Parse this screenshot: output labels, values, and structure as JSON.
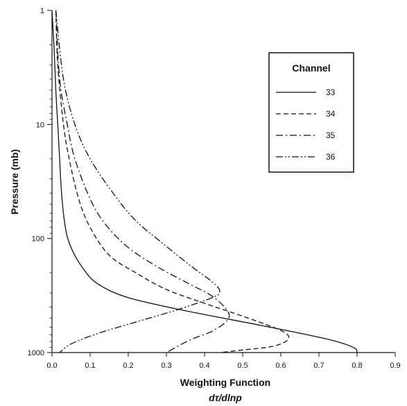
{
  "chart_data": {
    "type": "line",
    "xlabel": "Weighting Function",
    "xlabel_sub": "dτ/dlnp",
    "ylabel": "Pressure (mb)",
    "xlim": [
      0,
      0.9
    ],
    "ylim": [
      1,
      1000
    ],
    "yscale": "log",
    "y_reversed": true,
    "grid": false,
    "x_ticks": [
      "0.0",
      "0.1",
      "0.2",
      "0.3",
      "0.4",
      "0.5",
      "0.6",
      "0.7",
      "0.8",
      "0.9"
    ],
    "y_ticks": [
      "1",
      "10",
      "100",
      "1000"
    ],
    "legend": {
      "title": "Channel",
      "placement": "top-right"
    },
    "series": [
      {
        "name": "33",
        "style": "solid",
        "points": [
          [
            0.0,
            1
          ],
          [
            0.005,
            2
          ],
          [
            0.01,
            5
          ],
          [
            0.015,
            10
          ],
          [
            0.02,
            20
          ],
          [
            0.025,
            40
          ],
          [
            0.035,
            80
          ],
          [
            0.05,
            120
          ],
          [
            0.08,
            180
          ],
          [
            0.12,
            250
          ],
          [
            0.2,
            330
          ],
          [
            0.35,
            430
          ],
          [
            0.55,
            580
          ],
          [
            0.72,
            760
          ],
          [
            0.79,
            900
          ],
          [
            0.8,
            1000
          ]
        ]
      },
      {
        "name": "34",
        "style": "dashed",
        "points": [
          [
            0.01,
            1
          ],
          [
            0.015,
            3
          ],
          [
            0.03,
            10
          ],
          [
            0.045,
            20
          ],
          [
            0.07,
            45
          ],
          [
            0.1,
            80
          ],
          [
            0.15,
            140
          ],
          [
            0.22,
            200
          ],
          [
            0.3,
            280
          ],
          [
            0.4,
            370
          ],
          [
            0.5,
            480
          ],
          [
            0.6,
            640
          ],
          [
            0.62,
            760
          ],
          [
            0.58,
            880
          ],
          [
            0.5,
            950
          ],
          [
            0.44,
            1000
          ]
        ]
      },
      {
        "name": "35",
        "style": "dash-dot",
        "points": [
          [
            0.01,
            1
          ],
          [
            0.02,
            4
          ],
          [
            0.04,
            10
          ],
          [
            0.06,
            20
          ],
          [
            0.1,
            45
          ],
          [
            0.14,
            75
          ],
          [
            0.2,
            120
          ],
          [
            0.28,
            180
          ],
          [
            0.36,
            250
          ],
          [
            0.42,
            320
          ],
          [
            0.46,
            430
          ],
          [
            0.46,
            520
          ],
          [
            0.42,
            650
          ],
          [
            0.36,
            780
          ],
          [
            0.3,
            1000
          ]
        ]
      },
      {
        "name": "36",
        "style": "dash-dot-dot",
        "points": [
          [
            0.01,
            1
          ],
          [
            0.03,
            4
          ],
          [
            0.06,
            10
          ],
          [
            0.1,
            20
          ],
          [
            0.16,
            40
          ],
          [
            0.22,
            70
          ],
          [
            0.29,
            110
          ],
          [
            0.36,
            170
          ],
          [
            0.42,
            240
          ],
          [
            0.44,
            290
          ],
          [
            0.42,
            330
          ],
          [
            0.33,
            420
          ],
          [
            0.22,
            540
          ],
          [
            0.12,
            680
          ],
          [
            0.05,
            840
          ],
          [
            0.02,
            1000
          ]
        ]
      }
    ]
  }
}
